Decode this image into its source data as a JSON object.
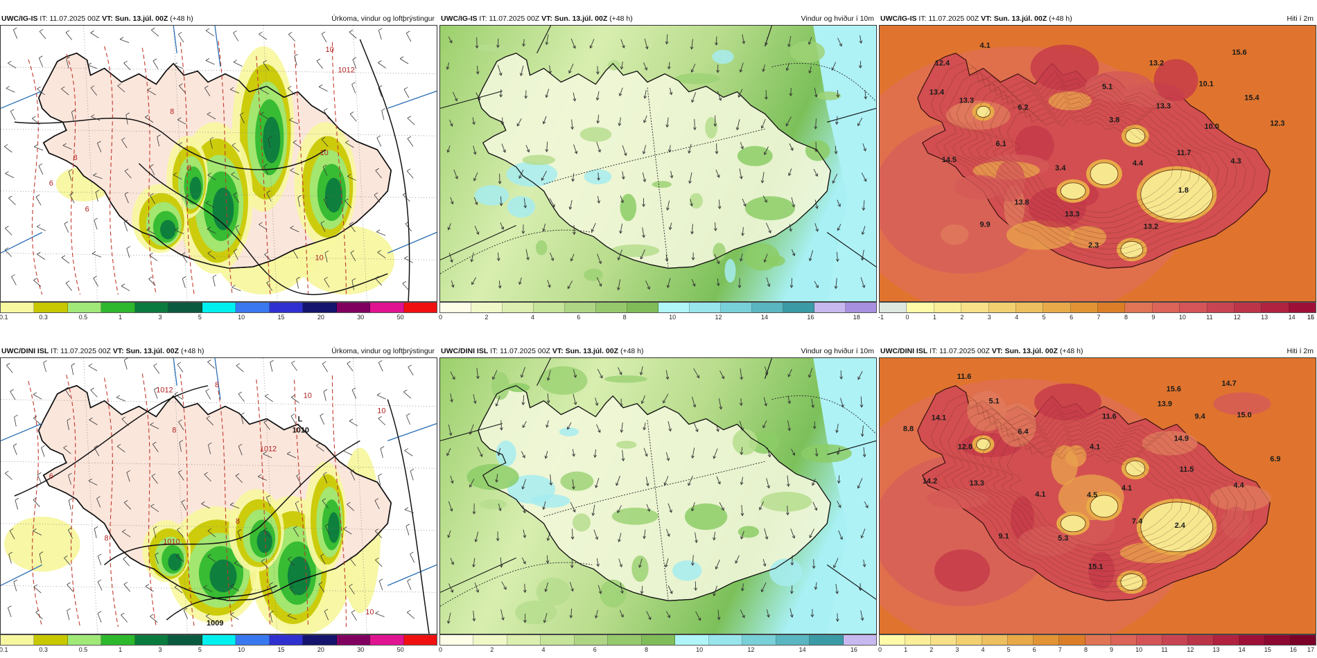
{
  "panels": [
    {
      "model": "UWC/IG-IS",
      "it": "IT: 11.07.2025 00Z",
      "vt_label": "VT:",
      "vt": "Sun. 13.júl. 00Z",
      "lead": "(+48 h)",
      "field": "Úrkoma, vindur og loftþrýstingur",
      "kind": "precip",
      "colorbar": {
        "colors": [
          "#f7f7a0",
          "#c8c800",
          "#a0e878",
          "#2eb82e",
          "#0b7a3e",
          "#0b5a40",
          "#00f0f0",
          "#3a78f0",
          "#3030d0",
          "#14146e",
          "#800060",
          "#e01490",
          "#f01010"
        ],
        "ticks": [
          "0.1",
          "0.3",
          "0.5",
          "1",
          "3",
          "5",
          "10",
          "15",
          "20",
          "30",
          "50"
        ]
      },
      "pressure_labels": [
        "8",
        "6",
        "8",
        "6",
        "8",
        "10",
        "10",
        "1012",
        "10"
      ],
      "highs_lows": []
    },
    {
      "model": "UWC/IG-IS",
      "it": "IT: 11.07.2025 00Z",
      "vt_label": "VT:",
      "vt": "Sun. 13.júl. 00Z",
      "lead": "(+48 h)",
      "field": "Vindur og hviður í 10m",
      "kind": "wind",
      "colorbar": {
        "colors": [
          "#fdfde8",
          "#f0f8c8",
          "#dcefb0",
          "#c6e49a",
          "#aed584",
          "#96c96c",
          "#80bd58",
          "#b0f6f8",
          "#98e6ec",
          "#78d0d8",
          "#5ab6c0",
          "#3a9aa6",
          "#c8b8f0",
          "#a890e0"
        ],
        "ticks": [
          "0",
          "2",
          "4",
          "6",
          "8",
          "10",
          "12",
          "14",
          "16",
          "18"
        ]
      },
      "temp_labels": [],
      "highs_lows": []
    },
    {
      "model": "UWC/IG-IS",
      "it": "IT: 11.07.2025 00Z",
      "vt_label": "VT:",
      "vt": "Sun. 13.júl. 00Z",
      "lead": "(+48 h)",
      "field": "Hiti í 2m",
      "kind": "temp",
      "colorbar": {
        "colors": [
          "#dde8e0",
          "#fffaa8",
          "#fbee98",
          "#f7e088",
          "#f2d070",
          "#eebf5e",
          "#e8aa48",
          "#e29434",
          "#dc7e28",
          "#e07454",
          "#dc6458",
          "#d45458",
          "#c84452",
          "#bc3448",
          "#b02240",
          "#9e1038"
        ],
        "ticks": [
          "-1",
          "0",
          "1",
          "2",
          "3",
          "4",
          "5",
          "6",
          "7",
          "8",
          "9",
          "10",
          "11",
          "12",
          "13",
          "14",
          "15",
          "16"
        ]
      },
      "temp_labels": [
        "4.1",
        "12.4",
        "13.2",
        "15.6",
        "13.4",
        "13.3",
        "5.1",
        "10.1",
        "15.4",
        "6.2",
        "13.3",
        "3.8",
        "12.3",
        "10.0",
        "6.1",
        "11.7",
        "14.5",
        "3.4",
        "4.4",
        "4.3",
        "1.8",
        "13.8",
        "13.3",
        "9.9",
        "13.2",
        "2.3"
      ],
      "highs_lows": []
    },
    {
      "model": "UWC/DINI ISL",
      "it": "IT: 11.07.2025 00Z",
      "vt_label": "VT:",
      "vt": "Sun. 13.júl. 00Z",
      "lead": "(+48 h)",
      "field": "Úrkoma, vindur og loftþrýstingur",
      "kind": "precip",
      "colorbar": {
        "colors": [
          "#f7f7a0",
          "#c8c800",
          "#a0e878",
          "#2eb82e",
          "#0b7a3e",
          "#0b5a40",
          "#00f0f0",
          "#3a78f0",
          "#3030d0",
          "#14146e",
          "#800060",
          "#e01490",
          "#f01010"
        ],
        "ticks": [
          "0.1",
          "0.3",
          "0.5",
          "1",
          "3",
          "5",
          "10",
          "15",
          "20",
          "30",
          "50"
        ]
      },
      "pressure_labels": [
        "8",
        "1012",
        "8",
        "10",
        "10",
        "1012",
        "6",
        "8",
        "8",
        "1010",
        "10"
      ],
      "highs_lows": [
        "L",
        "1010",
        "1009"
      ]
    },
    {
      "model": "UWC/DINI ISL",
      "it": "IT: 11.07.2025 00Z",
      "vt_label": "VT:",
      "vt": "Sun. 13.júl. 00Z",
      "lead": "(+48 h)",
      "field": "Vindur og hviður í 10m",
      "kind": "wind",
      "colorbar": {
        "colors": [
          "#fdfde8",
          "#f0f8c8",
          "#dcefb0",
          "#c6e49a",
          "#aed584",
          "#96c96c",
          "#80bd58",
          "#b0f6f8",
          "#98e6ec",
          "#78d0d8",
          "#5ab6c0",
          "#3a9aa6",
          "#c8b8f0"
        ],
        "ticks": [
          "0",
          "2",
          "4",
          "6",
          "8",
          "10",
          "12",
          "14",
          "16"
        ]
      },
      "temp_labels": [],
      "highs_lows": []
    },
    {
      "model": "UWC/DINI ISL",
      "it": "IT: 11.07.2025 00Z",
      "vt_label": "VT:",
      "vt": "Sun. 13.júl. 00Z",
      "lead": "(+48 h)",
      "field": "Hiti í 2m",
      "kind": "temp",
      "colorbar": {
        "colors": [
          "#fffaa8",
          "#fbee98",
          "#f7e088",
          "#f2d070",
          "#eebf5e",
          "#e8aa48",
          "#e29434",
          "#dc7e28",
          "#e07454",
          "#dc6458",
          "#d45458",
          "#c84452",
          "#bc3448",
          "#b02240",
          "#9e1038",
          "#8c0830",
          "#7a0028"
        ],
        "ticks": [
          "0",
          "1",
          "2",
          "3",
          "4",
          "5",
          "6",
          "7",
          "8",
          "9",
          "10",
          "11",
          "12",
          "13",
          "14",
          "15",
          "16",
          "17"
        ]
      },
      "temp_labels": [
        "11.6",
        "5.1",
        "15.6",
        "14.7",
        "14.1",
        "11.6",
        "13.9",
        "9.4",
        "15.0",
        "8.8",
        "6.4",
        "14.9",
        "12.8",
        "4.1",
        "6.9",
        "11.5",
        "14.2",
        "13.3",
        "4.1",
        "4.5",
        "4.1",
        "4.4",
        "7.4",
        "2.4",
        "9.1",
        "5.3",
        "15.1"
      ],
      "highs_lows": []
    }
  ],
  "colors": {
    "land_precip": "#fbe6dc",
    "sea_precip": "#ffffff",
    "coast": "#111111",
    "isobar": "#111111",
    "isotherm_dashed": "#c0392b",
    "graticule_blue": "#2a6fb5"
  }
}
